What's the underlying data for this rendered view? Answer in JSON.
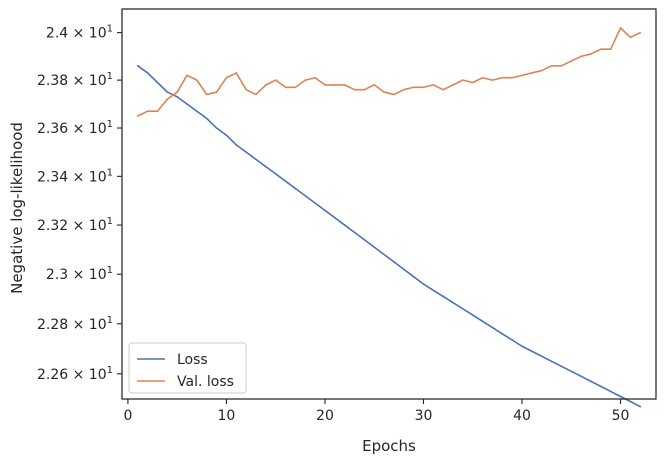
{
  "chart_data": {
    "type": "line",
    "xlabel": "Epochs",
    "ylabel": "Negative log-likelihood",
    "xlim": [
      -0.6,
      53.6
    ],
    "ylim": [
      22.5,
      24.1
    ],
    "y_scale": "log",
    "grid": false,
    "legend_position": "lower-left",
    "x_ticks": [
      0,
      10,
      20,
      30,
      40,
      50
    ],
    "y_ticks": [
      {
        "value": 22.6,
        "mantissa": "2.26"
      },
      {
        "value": 22.8,
        "mantissa": "2.28"
      },
      {
        "value": 23.0,
        "mantissa": "2.3"
      },
      {
        "value": 23.2,
        "mantissa": "2.32"
      },
      {
        "value": 23.4,
        "mantissa": "2.34"
      },
      {
        "value": 23.6,
        "mantissa": "2.36"
      },
      {
        "value": 23.8,
        "mantissa": "2.38"
      },
      {
        "value": 24.0,
        "mantissa": "2.4"
      }
    ],
    "tick_suffix": {
      "times": "×",
      "base": "10",
      "exponent": "1"
    },
    "x": [
      1,
      2,
      3,
      4,
      5,
      6,
      7,
      8,
      9,
      10,
      11,
      12,
      13,
      14,
      15,
      16,
      17,
      18,
      19,
      20,
      21,
      22,
      23,
      24,
      25,
      26,
      27,
      28,
      29,
      30,
      31,
      32,
      33,
      34,
      35,
      36,
      37,
      38,
      39,
      40,
      41,
      42,
      43,
      44,
      45,
      46,
      47,
      48,
      49,
      50,
      51,
      52
    ],
    "series": [
      {
        "name": "Loss",
        "color": "#4c72b0",
        "values": [
          23.86,
          23.83,
          23.79,
          23.75,
          23.73,
          23.7,
          23.67,
          23.64,
          23.6,
          23.57,
          23.53,
          23.5,
          23.47,
          23.44,
          23.41,
          23.38,
          23.35,
          23.32,
          23.29,
          23.26,
          23.23,
          23.2,
          23.17,
          23.14,
          23.11,
          23.08,
          23.05,
          23.02,
          22.99,
          22.96,
          22.935,
          22.91,
          22.885,
          22.86,
          22.835,
          22.81,
          22.785,
          22.76,
          22.735,
          22.71,
          22.69,
          22.67,
          22.65,
          22.63,
          22.61,
          22.59,
          22.57,
          22.55,
          22.53,
          22.51,
          22.49,
          22.47
        ]
      },
      {
        "name": "Val. loss",
        "color": "#dd8452",
        "values": [
          23.65,
          23.67,
          23.67,
          23.72,
          23.75,
          23.82,
          23.8,
          23.74,
          23.75,
          23.81,
          23.83,
          23.76,
          23.74,
          23.78,
          23.8,
          23.77,
          23.77,
          23.8,
          23.81,
          23.78,
          23.78,
          23.78,
          23.76,
          23.76,
          23.78,
          23.75,
          23.74,
          23.76,
          23.77,
          23.77,
          23.78,
          23.76,
          23.78,
          23.8,
          23.79,
          23.81,
          23.8,
          23.81,
          23.81,
          23.82,
          23.83,
          23.84,
          23.86,
          23.86,
          23.88,
          23.9,
          23.91,
          23.93,
          23.93,
          24.02,
          23.98,
          24.0
        ]
      }
    ]
  }
}
